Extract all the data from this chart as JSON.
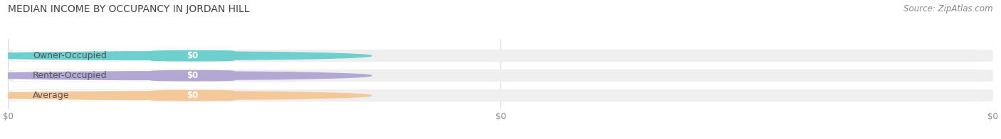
{
  "title": "MEDIAN INCOME BY OCCUPANCY IN JORDAN HILL",
  "source": "Source: ZipAtlas.com",
  "categories": [
    "Owner-Occupied",
    "Renter-Occupied",
    "Average"
  ],
  "values": [
    0,
    0,
    0
  ],
  "bar_colors": [
    "#6ecfcf",
    "#b3a8d4",
    "#f5c899"
  ],
  "bar_bg_color": "#efefef",
  "bg_color": "#ffffff",
  "value_label": "$0",
  "figsize": [
    14.06,
    1.96
  ],
  "dpi": 100,
  "title_color": "#444444",
  "title_fontsize": 10,
  "source_fontsize": 8.5,
  "source_color": "#888888",
  "label_color": "#555555",
  "label_fontsize": 9,
  "value_fontsize": 8.5,
  "tick_label_color": "#888888",
  "tick_fontsize": 8.5
}
